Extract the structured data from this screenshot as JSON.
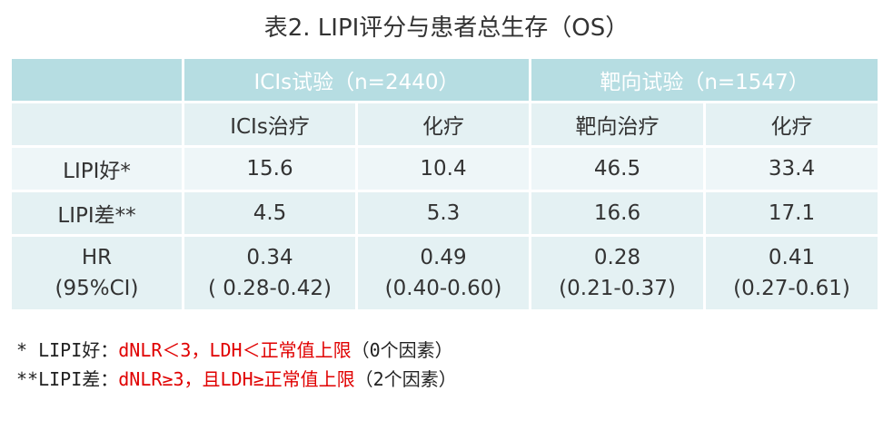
{
  "title": "表2. LIPI评分与患者总生存（OS）",
  "table": {
    "group_headers": [
      "ICIs试验（n=2440）",
      "靶向试验（n=1547）"
    ],
    "sub_headers": [
      "ICIs治疗",
      "化疗",
      "靶向治疗",
      "化疗"
    ],
    "rows": [
      {
        "label": "LIPI好*",
        "values": [
          "15.6",
          "10.4",
          "46.5",
          "33.4"
        ]
      },
      {
        "label": "LIPI差**",
        "values": [
          "4.5",
          "5.3",
          "16.6",
          "17.1"
        ]
      }
    ],
    "hr_row": {
      "label_line1": "HR",
      "label_line2": "(95%CI)",
      "values": [
        {
          "hr": "0.34",
          "ci": "( 0.28-0.42)"
        },
        {
          "hr": "0.49",
          "ci": "(0.40-0.60)"
        },
        {
          "hr": "0.28",
          "ci": "(0.21-0.37)"
        },
        {
          "hr": "0.41",
          "ci": "(0.27-0.61)"
        }
      ]
    }
  },
  "footnotes": [
    {
      "prefix": "* LIPI好：",
      "condition": "dNLR＜3，LDH＜正常值上限",
      "suffix": "（0个因素）"
    },
    {
      "prefix": "**LIPI差：",
      "condition": "dNLR≥3，且LDH≥正常值上限",
      "suffix": "（2个因素）"
    }
  ],
  "colors": {
    "header_bg": "#b6dde2",
    "cell_bg": "#e4f1f3",
    "footnote_highlight": "#e00000"
  }
}
